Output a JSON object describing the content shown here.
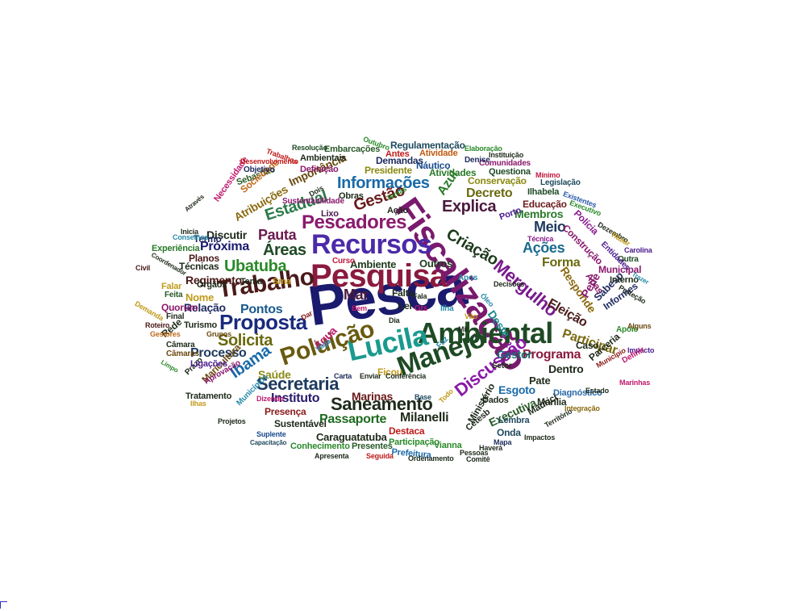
{
  "cloud": {
    "words": [
      {
        "text": "Pesca",
        "color": "#1a1a6e"
      },
      {
        "text": "Pesquisa",
        "color": "#8a1a3e"
      },
      {
        "text": "Fiscalização",
        "color": "#7a1a6e"
      },
      {
        "text": "Recursos",
        "color": "#4b2aa8"
      },
      {
        "text": "Ambiental",
        "color": "#1e4a24"
      },
      {
        "text": "Lucila",
        "color": "#1a9a8e"
      },
      {
        "text": "Manejo",
        "color": "#1e4a24"
      },
      {
        "text": "Poluição",
        "color": "#6a5a10"
      },
      {
        "text": "Trabalho",
        "color": "#4a1a1a"
      },
      {
        "text": "Pescadores",
        "color": "#8a1a6e"
      },
      {
        "text": "Mergulho",
        "color": "#7a1a8e"
      },
      {
        "text": "Proposta",
        "color": "#1a2a7e"
      },
      {
        "text": "Saneamento",
        "color": "#1e2a1a"
      },
      {
        "text": "Secretaria",
        "color": "#1e3a5e"
      },
      {
        "text": "Discussão",
        "color": "#8a1aa8"
      },
      {
        "text": "Informações",
        "color": "#1a6aa8"
      },
      {
        "text": "Áreas",
        "color": "#1e4a24"
      },
      {
        "text": "Ubatuba",
        "color": "#2a8a2a"
      },
      {
        "text": "Gestão",
        "color": "#6a1a1a"
      },
      {
        "text": "Explica",
        "color": "#4a1a3e"
      },
      {
        "text": "Criação",
        "color": "#1e3a1e"
      },
      {
        "text": "Pauta",
        "color": "#6a1a4e"
      },
      {
        "text": "Estadual",
        "color": "#2a7a4a"
      },
      {
        "text": "Solicita",
        "color": "#6a6a10"
      },
      {
        "text": "Ibama",
        "color": "#1a6aa8"
      },
      {
        "text": "Programa",
        "color": "#8a1a3e"
      },
      {
        "text": "Milanelli",
        "color": "#1e2a1a"
      },
      {
        "text": "Passaporte",
        "color": "#1e6a1e"
      },
      {
        "text": "Instituto",
        "color": "#2a1a6e"
      },
      {
        "text": "Ações",
        "color": "#1a6a8e"
      },
      {
        "text": "Meio",
        "color": "#1e3a5e"
      },
      {
        "text": "Mar",
        "color": "#4a1a3e"
      },
      {
        "text": "Azul",
        "color": "#2a7a2a"
      },
      {
        "text": "Decreto",
        "color": "#6a6a10"
      },
      {
        "text": "Pontos",
        "color": "#1a5a8e"
      },
      {
        "text": "Próxima",
        "color": "#1a1a6e"
      },
      {
        "text": "Eleição",
        "color": "#4a1a1a"
      },
      {
        "text": "Participar",
        "color": "#7a6a10"
      },
      {
        "text": "Executiva",
        "color": "#2a5a2a"
      },
      {
        "text": "Esgoto",
        "color": "#1a6aa8"
      },
      {
        "text": "Forma",
        "color": "#6a6a10"
      },
      {
        "text": "Processo",
        "color": "#1e3a5e"
      },
      {
        "text": "Gestor",
        "color": "#1a6a6e"
      },
      {
        "text": "Dentro",
        "color": "#1e2a1a"
      },
      {
        "text": "Membros",
        "color": "#2a7a2a"
      },
      {
        "text": "Relação",
        "color": "#1e2a5e"
      },
      {
        "text": "Marinas",
        "color": "#6a1a1a"
      },
      {
        "text": "Saúde",
        "color": "#8a8a1a"
      },
      {
        "text": "Discutir",
        "color": "#1e2a1a"
      },
      {
        "text": "Regimento",
        "color": "#4a1a1a"
      },
      {
        "text": "Caraguatatuba",
        "color": "#1e2a1a"
      },
      {
        "text": "Regulamentação",
        "color": "#1e4a5e"
      },
      {
        "text": "Importância",
        "color": "#6a4a10"
      },
      {
        "text": "Atribuições",
        "color": "#8a6a10"
      },
      {
        "text": "Presidente",
        "color": "#8a8a10"
      },
      {
        "text": "Atividades",
        "color": "#2a7a2a"
      },
      {
        "text": "Conservação",
        "color": "#8a8a10"
      },
      {
        "text": "Demandas",
        "color": "#1e2a5e"
      },
      {
        "text": "Náutico",
        "color": "#1a4a8e"
      },
      {
        "text": "Embarcações",
        "color": "#2a5a2a"
      },
      {
        "text": "Atividade",
        "color": "#c05a10"
      },
      {
        "text": "Antes",
        "color": "#c01a1a"
      },
      {
        "text": "Questiona",
        "color": "#1e4a24"
      },
      {
        "text": "Ilhabela",
        "color": "#1e4a24"
      },
      {
        "text": "Obras",
        "color": "#1e2a1a"
      },
      {
        "text": "Ação",
        "color": "#1e2a1a"
      },
      {
        "text": "Lixo",
        "color": "#4a1a4e"
      },
      {
        "text": "Ambiente",
        "color": "#1e3a1e"
      },
      {
        "text": "Outros",
        "color": "#1e3a1e"
      },
      {
        "text": "Técnicas",
        "color": "#1e2a1a"
      },
      {
        "text": "Planos",
        "color": "#4a1a1a"
      },
      {
        "text": "Termo",
        "color": "#1e2a5e"
      },
      {
        "text": "Experiência",
        "color": "#2a7a2a"
      },
      {
        "text": "Sebastião",
        "color": "#2a5a2a"
      },
      {
        "text": "Sociedade",
        "color": "#c06a1a"
      },
      {
        "text": "Necessidade",
        "color": "#c01a6e"
      },
      {
        "text": "Ambientais",
        "color": "#1e2a1a"
      },
      {
        "text": "Definição",
        "color": "#8a1a6e"
      },
      {
        "text": "Objetivo",
        "color": "#1e2a5e"
      },
      {
        "text": "Desenvolvimento",
        "color": "#c01a1a"
      },
      {
        "text": "Trabalhos",
        "color": "#c01a1a"
      },
      {
        "text": "Resolução",
        "color": "#1e4a24"
      },
      {
        "text": "Outubro",
        "color": "#2a8a2a"
      },
      {
        "text": "Elaboração",
        "color": "#2a8a2a"
      },
      {
        "text": "Instituição",
        "color": "#1e2a1a"
      },
      {
        "text": "Comunidades",
        "color": "#8a1a6e"
      },
      {
        "text": "Denise",
        "color": "#1e2a5e"
      },
      {
        "text": "Mínimo",
        "color": "#c01a3e"
      },
      {
        "text": "Legislação",
        "color": "#1e4a5e"
      },
      {
        "text": "Existentes",
        "color": "#2a5aa8"
      },
      {
        "text": "Executivo",
        "color": "#2a8a2a"
      },
      {
        "text": "Educação",
        "color": "#6a1a1a"
      },
      {
        "text": "Polícia",
        "color": "#8a1a8e"
      },
      {
        "text": "Construção",
        "color": "#8a1a6e"
      },
      {
        "text": "Responde",
        "color": "#8a6a10"
      },
      {
        "text": "Apas",
        "color": "#8a1a6e"
      },
      {
        "text": "Pede",
        "color": "#8a1a6e"
      },
      {
        "text": "Sabesp",
        "color": "#1e2a5e"
      },
      {
        "text": "Informes",
        "color": "#1e2a5e"
      },
      {
        "text": "Municipal",
        "color": "#8a1a6e"
      },
      {
        "text": "Interno",
        "color": "#1e2a1a"
      },
      {
        "text": "Outra",
        "color": "#1e4a24"
      },
      {
        "text": "Proteção",
        "color": "#1e2a1a"
      },
      {
        "text": "Técnica",
        "color": "#8a1a8e"
      },
      {
        "text": "Dezembro",
        "color": "#1e2a1a"
      },
      {
        "text": "Titular",
        "color": "#c09a1a"
      },
      {
        "text": "Entidades",
        "color": "#4a1a8e"
      },
      {
        "text": "Carolina",
        "color": "#4a1a8e"
      },
      {
        "text": "Trazer",
        "color": "#2a8aa8"
      },
      {
        "text": "Porto",
        "color": "#4a1a8e"
      },
      {
        "text": "Deste",
        "color": "#1a8a8e"
      },
      {
        "text": "Caso",
        "color": "#1e2a1a"
      },
      {
        "text": "Apoio",
        "color": "#2a8a2a"
      },
      {
        "text": "Alguns",
        "color": "#6a4a10"
      },
      {
        "text": "Impacto",
        "color": "#4a1a8e"
      },
      {
        "text": "Parceria",
        "color": "#1e2a1a"
      },
      {
        "text": "Marinhas",
        "color": "#c01a6e"
      },
      {
        "text": "Município",
        "color": "#8a1a1a"
      },
      {
        "text": "Definir",
        "color": "#c01a6e"
      },
      {
        "text": "Pate",
        "color": "#1e2a1a"
      },
      {
        "text": "Diagnóstico",
        "color": "#2a6aa8"
      },
      {
        "text": "Estado",
        "color": "#1e2a1a"
      },
      {
        "text": "Marília",
        "color": "#1e2a1a"
      },
      {
        "text": "Integração",
        "color": "#8a6a10"
      },
      {
        "text": "Maurici",
        "color": "#1e2a1a"
      },
      {
        "text": "Lembra",
        "color": "#1e4a5e"
      },
      {
        "text": "Dados",
        "color": "#1e2a1a"
      },
      {
        "text": "Onda",
        "color": "#1e4a5e"
      },
      {
        "text": "Impactos",
        "color": "#1e2a1a"
      },
      {
        "text": "Território",
        "color": "#1e2a1a"
      },
      {
        "text": "Ministério",
        "color": "#1e2a1a"
      },
      {
        "text": "Cetesb",
        "color": "#1e2a1a"
      },
      {
        "text": "Mapa",
        "color": "#1e2a5e"
      },
      {
        "text": "Haverá",
        "color": "#1e2a1a"
      },
      {
        "text": "Pessoas",
        "color": "#1e2a1a"
      },
      {
        "text": "Comitê",
        "color": "#1e2a1a"
      },
      {
        "text": "Vianna",
        "color": "#2a8a2a"
      },
      {
        "text": "Destaca",
        "color": "#c01a1a"
      },
      {
        "text": "Participação",
        "color": "#2a8a2a"
      },
      {
        "text": "Prefeitura",
        "color": "#1a6aa8"
      },
      {
        "text": "Ordenamento",
        "color": "#1e2a1a"
      },
      {
        "text": "Presentes",
        "color": "#2a5a2a"
      },
      {
        "text": "Seguida",
        "color": "#c01a1a"
      },
      {
        "text": "Apresenta",
        "color": "#1e2a1a"
      },
      {
        "text": "Conhecimento",
        "color": "#2a8a2a"
      },
      {
        "text": "Suplente",
        "color": "#1a4a8e"
      },
      {
        "text": "Capacitação",
        "color": "#1e4a5e"
      },
      {
        "text": "Sustentável",
        "color": "#1e2a1a"
      },
      {
        "text": "Presença",
        "color": "#8a1a1a"
      },
      {
        "text": "Projetos",
        "color": "#1e2a1a"
      },
      {
        "text": "Municípios",
        "color": "#2a8aa8"
      },
      {
        "text": "Dizendo",
        "color": "#c01a6e"
      },
      {
        "text": "Ilhas",
        "color": "#c09a1a"
      },
      {
        "text": "Tratamento",
        "color": "#1e2a1a"
      },
      {
        "text": "Maricultura",
        "color": "#6a4a10"
      },
      {
        "text": "Aprovação",
        "color": "#8a1a6e"
      },
      {
        "text": "Prazo",
        "color": "#1e2a1a"
      },
      {
        "text": "Limpo",
        "color": "#2a8a2a"
      },
      {
        "text": "Ligações",
        "color": "#4a1a8e"
      },
      {
        "text": "Câmaras",
        "color": "#6a4a10"
      },
      {
        "text": "Câmara",
        "color": "#1e2a1a"
      },
      {
        "text": "Rede",
        "color": "#1e2a1a"
      },
      {
        "text": "Grupos",
        "color": "#6a4a10"
      },
      {
        "text": "Gestores",
        "color": "#c06a1a"
      },
      {
        "text": "Turismo",
        "color": "#1e2a1a"
      },
      {
        "text": "Roteiro",
        "color": "#4a1a1a"
      },
      {
        "text": "Demanda",
        "color": "#c09a1a"
      },
      {
        "text": "Quorum",
        "color": "#8a1a6e"
      },
      {
        "text": "Feita",
        "color": "#2a5a2a"
      },
      {
        "text": "Final",
        "color": "#1e2a1a"
      },
      {
        "text": "Falar",
        "color": "#c09a1a"
      },
      {
        "text": "Nome",
        "color": "#c09a1a"
      },
      {
        "text": "Órgãos",
        "color": "#1e2a1a"
      },
      {
        "text": "Tema",
        "color": "#1e2a1a"
      },
      {
        "text": "Sma",
        "color": "#c09a1a"
      },
      {
        "text": "Civil",
        "color": "#4a1a1a"
      },
      {
        "text": "Coordenador",
        "color": "#1e2a1a"
      },
      {
        "text": "Conselhos",
        "color": "#2a8aa8"
      },
      {
        "text": "Inicia",
        "color": "#1e2a1a"
      },
      {
        "text": "Através",
        "color": "#1e2a1a"
      },
      {
        "text": "Sustentabilidade",
        "color": "#8a1a6e"
      },
      {
        "text": "Dois",
        "color": "#1e2a1a"
      },
      {
        "text": "Temas",
        "color": "#2a8a2a"
      },
      {
        "text": "Curso",
        "color": "#c01a3e"
      },
      {
        "text": "Anos",
        "color": "#2a8aa8"
      },
      {
        "text": "Falta",
        "color": "#1e2a1a"
      },
      {
        "text": "Fala",
        "color": "#1e2a1a"
      },
      {
        "text": "Lei",
        "color": "#1e2a1a"
      },
      {
        "text": "Gts",
        "color": "#c01a6e"
      },
      {
        "text": "Ilha",
        "color": "#2a8aa8"
      },
      {
        "text": "Bem",
        "color": "#c01a6e"
      },
      {
        "text": "Dar",
        "color": "#8a1a1a"
      },
      {
        "text": "Dia",
        "color": "#1e2a1a"
      },
      {
        "text": "Mil",
        "color": "#1e2a1a"
      },
      {
        "text": "Vão",
        "color": "#c09a1a"
      },
      {
        "text": "Faz",
        "color": "#2a8aa8"
      },
      {
        "text": "Água",
        "color": "#c01a6e"
      },
      {
        "text": "Vaga",
        "color": "#2a8aa8"
      },
      {
        "text": "Ficou",
        "color": "#c09a1a"
      },
      {
        "text": "Setor",
        "color": "#1e2a1a"
      },
      {
        "text": "Base",
        "color": "#1e4a5e"
      },
      {
        "text": "Todo",
        "color": "#c09a1a"
      },
      {
        "text": "Carta",
        "color": "#1e2a5e"
      },
      {
        "text": "Enviar",
        "color": "#1e2a1a"
      },
      {
        "text": "Conferência",
        "color": "#1e2a1a"
      },
      {
        "text": "Decisões",
        "color": "#1e2a1a"
      },
      {
        "text": "Óleo",
        "color": "#2a8aa8"
      },
      {
        "text": "Parab",
        "color": "#2a8a2a"
      }
    ]
  }
}
